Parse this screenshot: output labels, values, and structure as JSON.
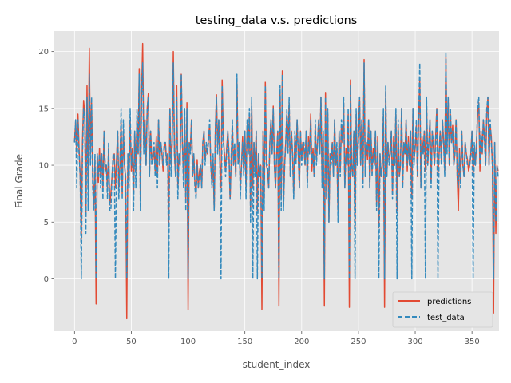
{
  "chart_data": {
    "type": "line",
    "title": "testing_data v.s. predictions",
    "xlabel": "student_index",
    "ylabel": "Final Grade",
    "xlim": [
      -17.8,
      373.8
    ],
    "ylim": [
      -4.6,
      21.8
    ],
    "xticks": [
      0,
      50,
      100,
      150,
      200,
      250,
      300,
      350
    ],
    "yticks": [
      0,
      5,
      10,
      15,
      20
    ],
    "grid": true,
    "style": "ggplot",
    "legend_position": "lower-right",
    "series": [
      {
        "name": "predictions",
        "color": "#E24A33",
        "dash": "solid",
        "values": [
          12.0,
          14.0,
          11.0,
          14.5,
          11.5,
          9.0,
          3.5,
          12.0,
          15.7,
          14.5,
          5.5,
          17.0,
          8.0,
          20.3,
          11.0,
          15.5,
          9.0,
          6.5,
          10.5,
          -2.2,
          11.0,
          8.5,
          11.5,
          9.0,
          11.0,
          8.0,
          13.0,
          9.5,
          10.0,
          8.0,
          11.5,
          6.5,
          7.5,
          9.0,
          10.5,
          11.0,
          8.0,
          10.5,
          13.0,
          8.0,
          10.0,
          14.0,
          7.5,
          13.0,
          10.0,
          9.0,
          -3.5,
          11.0,
          9.0,
          14.0,
          9.5,
          11.5,
          7.5,
          13.0,
          9.5,
          14.0,
          11.0,
          18.5,
          7.0,
          16.0,
          20.7,
          11.5,
          14.0,
          10.0,
          15.0,
          16.3,
          9.0,
          13.0,
          10.5,
          10.5,
          11.5,
          9.5,
          12.5,
          9.0,
          14.0,
          10.0,
          12.0,
          11.0,
          9.5,
          11.5,
          12.0,
          10.5,
          11.0,
          5.0,
          15.0,
          10.0,
          12.0,
          20.0,
          11.0,
          9.0,
          17.0,
          8.0,
          11.0,
          10.0,
          18.0,
          12.0,
          9.0,
          14.0,
          7.0,
          15.5,
          -2.7,
          12.0,
          11.5,
          14.0,
          9.0,
          11.0,
          8.5,
          7.5,
          10.5,
          8.0,
          9.5,
          10.0,
          8.0,
          12.0,
          13.0,
          10.5,
          11.5,
          11.0,
          12.5,
          13.5,
          10.0,
          8.5,
          10.5,
          6.0,
          13.0,
          16.2,
          11.5,
          14.0,
          10.0,
          8.0,
          17.5,
          12.5,
          11.0,
          9.5,
          11.5,
          13.0,
          11.0,
          7.0,
          10.5,
          13.5,
          10.0,
          11.5,
          9.0,
          17.5,
          10.5,
          12.0,
          8.0,
          10.0,
          12.5,
          9.5,
          13.0,
          8.0,
          13.5,
          11.0,
          14.5,
          6.0,
          15.5,
          8.0,
          12.0,
          9.5,
          13.0,
          6.0,
          11.0,
          9.0,
          10.0,
          -2.7,
          13.0,
          7.0,
          17.3,
          10.0,
          9.5,
          8.0,
          12.0,
          14.0,
          11.0,
          15.2,
          10.0,
          8.0,
          11.0,
          13.0,
          -2.4,
          16.5,
          7.0,
          18.3,
          6.5,
          10.0,
          12.0,
          14.5,
          11.5,
          15.5,
          9.0,
          13.0,
          11.0,
          7.5,
          12.5,
          10.5,
          14.0,
          11.0,
          8.0,
          13.0,
          10.5,
          12.0,
          11.5,
          10.0,
          13.0,
          8.5,
          12.5,
          11.0,
          14.5,
          9.5,
          11.5,
          9.0,
          13.5,
          10.5,
          12.0,
          14.0,
          11.0,
          16.0,
          8.5,
          13.0,
          -2.4,
          16.4,
          7.0,
          14.5,
          5.0,
          11.0,
          10.5,
          12.0,
          9.0,
          14.0,
          10.0,
          11.5,
          6.0,
          13.0,
          9.5,
          13.5,
          12.0,
          15.5,
          8.0,
          11.5,
          10.0,
          14.5,
          -2.5,
          17.5,
          10.0,
          9.0,
          13.0,
          4.5,
          14.5,
          10.0,
          12.5,
          16.0,
          10.0,
          14.0,
          8.5,
          19.3,
          9.0,
          12.0,
          10.5,
          14.0,
          8.0,
          13.0,
          9.5,
          11.5,
          10.0,
          13.0,
          6.5,
          12.5,
          4.5,
          11.0,
          9.0,
          10.0,
          14.5,
          -2.5,
          16.5,
          9.0,
          12.0,
          10.5,
          11.0,
          13.0,
          7.5,
          12.5,
          10.0,
          14.5,
          6.0,
          13.5,
          9.0,
          10.0,
          15.0,
          8.5,
          12.0,
          11.0,
          14.0,
          9.5,
          12.5,
          10.0,
          13.0,
          7.0,
          15.0,
          10.5,
          11.5,
          13.5,
          9.0,
          14.0,
          17.5,
          8.0,
          12.5,
          11.0,
          13.0,
          9.5,
          15.5,
          10.0,
          12.0,
          14.0,
          8.5,
          13.0,
          11.5,
          10.0,
          12.5,
          15.0,
          9.0,
          11.0,
          13.0,
          10.5,
          14.0,
          12.0,
          9.5,
          19.5,
          11.5,
          16.0,
          10.0,
          14.5,
          12.0,
          13.5,
          10.0,
          11.0,
          14.0,
          9.0,
          6.0,
          11.5,
          8.5,
          13.0,
          10.0,
          9.0,
          12.0,
          11.0,
          10.5,
          9.5,
          10.0,
          11.0,
          13.0,
          9.0,
          11.5,
          10.0,
          12.0,
          14.5,
          15.5,
          9.5,
          13.0,
          11.0,
          14.0,
          12.5,
          10.0,
          14.5,
          16.0,
          10.0,
          13.5,
          12.5,
          10.0,
          -3.0,
          12.0,
          4.0,
          10.0,
          9.5
        ]
      },
      {
        "name": "test_data",
        "color": "#348ABD",
        "dash": "dashed",
        "values": [
          12.0,
          14.0,
          8.0,
          14.0,
          11.0,
          9.0,
          0.0,
          11.0,
          15.0,
          14.0,
          4.0,
          16.0,
          6.0,
          18.0,
          10.0,
          16.0,
          8.0,
          6.0,
          11.0,
          0.0,
          11.0,
          9.0,
          11.0,
          8.0,
          11.0,
          7.0,
          13.0,
          10.0,
          10.0,
          7.0,
          12.0,
          6.0,
          6.0,
          9.0,
          11.0,
          11.0,
          0.0,
          10.0,
          13.0,
          7.0,
          10.0,
          15.0,
          7.0,
          14.0,
          10.0,
          9.0,
          0.0,
          11.0,
          8.0,
          15.0,
          10.0,
          11.0,
          6.0,
          13.0,
          8.0,
          15.0,
          11.0,
          18.0,
          6.0,
          16.0,
          19.0,
          11.0,
          14.0,
          10.0,
          15.0,
          16.0,
          9.0,
          13.0,
          10.0,
          11.0,
          12.0,
          9.0,
          12.0,
          8.0,
          14.0,
          10.0,
          12.0,
          11.0,
          10.0,
          12.0,
          12.0,
          10.0,
          11.0,
          0.0,
          15.0,
          9.0,
          12.0,
          19.0,
          11.0,
          9.0,
          16.0,
          7.0,
          11.0,
          10.0,
          18.0,
          12.0,
          8.0,
          15.0,
          6.0,
          15.0,
          0.0,
          12.0,
          11.0,
          14.0,
          9.0,
          11.0,
          8.0,
          7.0,
          10.0,
          8.0,
          9.0,
          10.0,
          8.0,
          12.0,
          13.0,
          10.0,
          12.0,
          11.0,
          12.0,
          14.0,
          10.0,
          8.0,
          11.0,
          6.0,
          13.0,
          16.0,
          11.0,
          14.0,
          10.0,
          0.0,
          17.0,
          12.0,
          11.0,
          9.0,
          11.0,
          13.0,
          11.0,
          7.0,
          11.0,
          14.0,
          10.0,
          12.0,
          9.0,
          18.0,
          10.0,
          12.0,
          7.0,
          10.0,
          12.0,
          9.0,
          13.0,
          7.0,
          14.0,
          11.0,
          15.0,
          5.0,
          16.0,
          0.0,
          12.0,
          9.0,
          13.0,
          0.0,
          11.0,
          9.0,
          10.0,
          0.0,
          13.0,
          6.0,
          17.0,
          10.0,
          10.0,
          8.0,
          12.0,
          14.0,
          11.0,
          15.0,
          10.0,
          8.0,
          11.0,
          13.0,
          0.0,
          17.0,
          6.0,
          18.0,
          6.0,
          10.0,
          12.0,
          15.0,
          11.0,
          16.0,
          9.0,
          13.0,
          11.0,
          7.0,
          13.0,
          10.0,
          14.0,
          11.0,
          8.0,
          13.0,
          10.0,
          12.0,
          12.0,
          10.0,
          13.0,
          8.0,
          12.0,
          11.0,
          14.0,
          10.0,
          11.0,
          9.0,
          14.0,
          10.0,
          12.0,
          14.0,
          11.0,
          16.0,
          8.0,
          13.0,
          0.0,
          16.0,
          7.0,
          15.0,
          5.0,
          11.0,
          10.0,
          12.0,
          9.0,
          14.0,
          10.0,
          12.0,
          5.0,
          13.0,
          9.0,
          14.0,
          12.0,
          16.0,
          8.0,
          11.0,
          10.0,
          15.0,
          0.0,
          17.0,
          10.0,
          9.0,
          13.0,
          0.0,
          15.0,
          10.0,
          12.0,
          16.0,
          10.0,
          14.0,
          8.0,
          19.0,
          9.0,
          12.0,
          11.0,
          14.0,
          8.0,
          13.0,
          9.0,
          11.0,
          10.0,
          13.0,
          6.0,
          12.0,
          0.0,
          11.0,
          9.0,
          10.0,
          15.0,
          0.0,
          17.0,
          9.0,
          12.0,
          10.0,
          11.0,
          13.0,
          7.0,
          12.0,
          10.0,
          15.0,
          0.0,
          14.0,
          9.0,
          10.0,
          15.0,
          8.0,
          12.0,
          11.0,
          14.0,
          10.0,
          12.0,
          10.0,
          13.0,
          0.0,
          15.0,
          10.0,
          12.0,
          14.0,
          9.0,
          14.0,
          19.0,
          8.0,
          12.0,
          11.0,
          13.0,
          0.0,
          16.0,
          10.0,
          12.0,
          14.0,
          8.0,
          13.0,
          12.0,
          10.0,
          12.0,
          15.0,
          0.0,
          11.0,
          13.0,
          10.0,
          14.0,
          12.0,
          9.0,
          20.0,
          11.0,
          16.0,
          10.0,
          15.0,
          12.0,
          13.0,
          10.0,
          11.0,
          14.0,
          9.0,
          8.0,
          11.0,
          8.0,
          13.0,
          10.0,
          9.0,
          12.0,
          11.0,
          10.0,
          10.0,
          10.0,
          11.0,
          13.0,
          0.0,
          12.0,
          10.0,
          12.0,
          15.0,
          16.0,
          10.0,
          13.0,
          11.0,
          14.0,
          12.0,
          10.0,
          15.0,
          16.0,
          10.0,
          14.0,
          12.0,
          10.0,
          0.0,
          12.0,
          5.0,
          10.0,
          9.0
        ]
      }
    ]
  }
}
